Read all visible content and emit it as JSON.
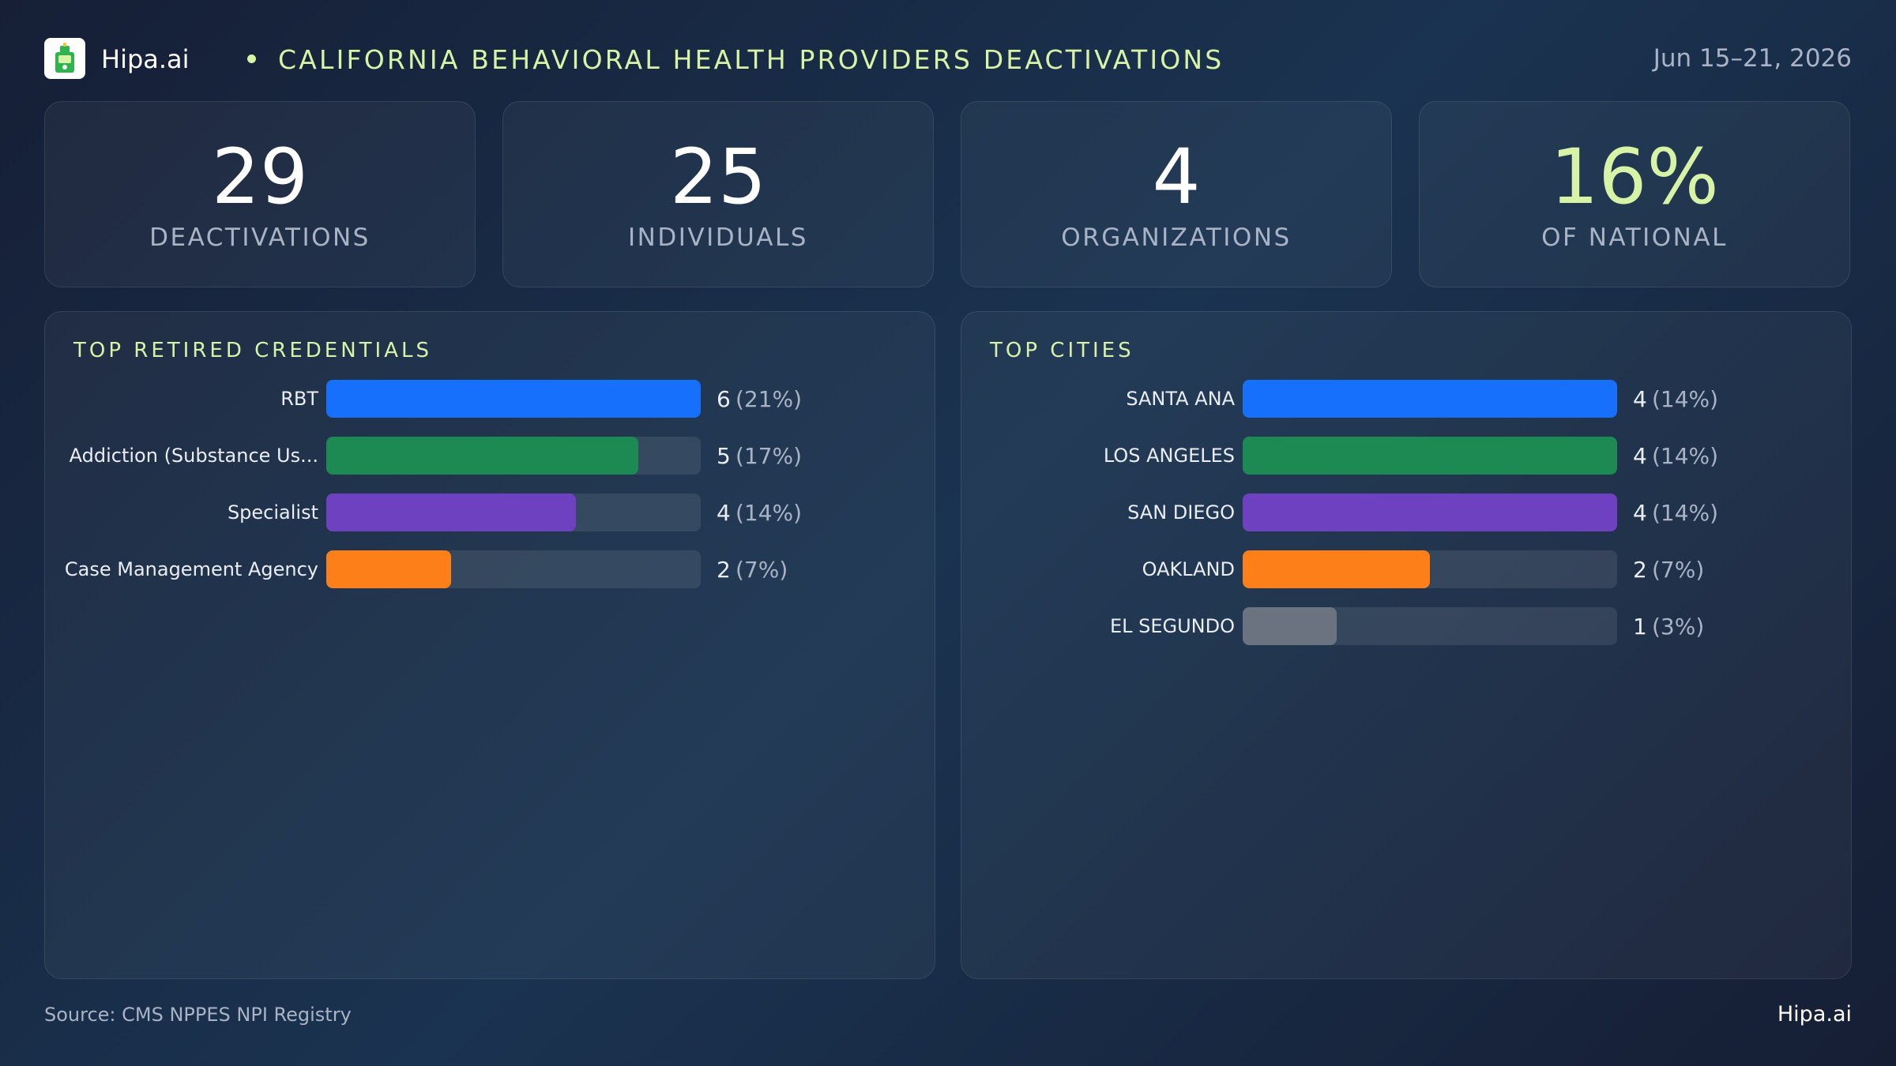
{
  "header": {
    "brand": "Hipa.ai",
    "title": "CALIFORNIA BEHAVIORAL HEALTH PROVIDERS DEACTIVATIONS",
    "date_range": "Jun 15–21, 2026"
  },
  "kpis": [
    {
      "value": "29",
      "label": "DEACTIVATIONS"
    },
    {
      "value": "25",
      "label": "INDIVIDUALS"
    },
    {
      "value": "4",
      "label": "ORGANIZATIONS"
    },
    {
      "value": "16%",
      "label": "OF NATIONAL"
    }
  ],
  "colors": {
    "accent": "#d7f3a6",
    "blue": "#1670fc",
    "green": "#1c8a52",
    "purple": "#6e41c0",
    "orange": "#fd7f1a",
    "gray": "#6b7280"
  },
  "chart_data": [
    {
      "type": "bar",
      "orientation": "horizontal",
      "title": "TOP RETIRED CREDENTIALS",
      "categories": [
        "RBT",
        "Addiction (Substance Us...",
        "Specialist",
        "Case Management Agency"
      ],
      "values": [
        6,
        5,
        4,
        2
      ],
      "percent_labels": [
        "(21%)",
        "(17%)",
        "(14%)",
        "(7%)"
      ],
      "colors": [
        "#1670fc",
        "#1c8a52",
        "#6e41c0",
        "#fd7f1a"
      ],
      "xlim": [
        0,
        6
      ]
    },
    {
      "type": "bar",
      "orientation": "horizontal",
      "title": "TOP CITIES",
      "categories": [
        "SANTA ANA",
        "LOS ANGELES",
        "SAN DIEGO",
        "OAKLAND",
        "EL SEGUNDO"
      ],
      "values": [
        4,
        4,
        4,
        2,
        1
      ],
      "percent_labels": [
        "(14%)",
        "(14%)",
        "(14%)",
        "(7%)",
        "(3%)"
      ],
      "colors": [
        "#1670fc",
        "#1c8a52",
        "#6e41c0",
        "#fd7f1a",
        "#6b7280"
      ],
      "xlim": [
        0,
        4
      ]
    }
  ],
  "footer": {
    "source": "Source: CMS NPPES NPI Registry",
    "brand": "Hipa.ai"
  }
}
